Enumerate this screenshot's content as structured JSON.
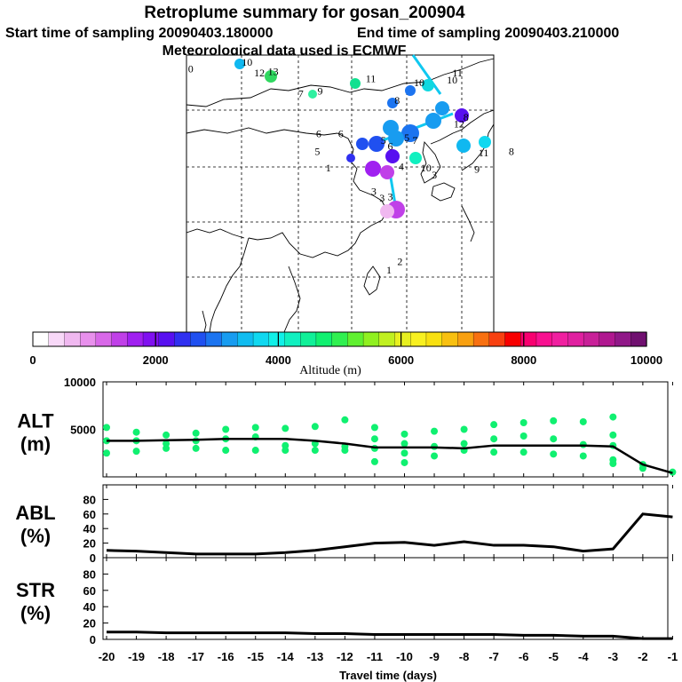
{
  "title": "Retroplume summary for gosan_200904",
  "start_label": "Start time of sampling 20090403.180000",
  "end_label": "End time of sampling 20090403.210000",
  "met_label": "Meteorological data used is ECMWF",
  "colorbar": {
    "title": "Altitude (m)",
    "ticks": [
      "0",
      "2000",
      "4000",
      "6000",
      "8000",
      "10000"
    ],
    "colors": [
      "#ffffff",
      "#f8d8f8",
      "#f0b8f0",
      "#e890ec",
      "#d868e8",
      "#c040e8",
      "#a020f0",
      "#8010f0",
      "#5810f0",
      "#3030f0",
      "#2050f0",
      "#1c74f0",
      "#189cf0",
      "#10bcf0",
      "#10d8f0",
      "#10f0e8",
      "#10f0c0",
      "#10f098",
      "#10f070",
      "#30f050",
      "#60f030",
      "#90f020",
      "#c0f020",
      "#e8f020",
      "#f8f020",
      "#f8e010",
      "#f8c010",
      "#f8a010",
      "#f87010",
      "#f84010",
      "#f80000",
      "#f80070",
      "#f81090",
      "#f020a0",
      "#e020a0",
      "#c82098",
      "#b01890",
      "#901888",
      "#701070"
    ]
  },
  "map": {
    "trajectory_labels": [
      {
        "text": "10",
        "color": "#10b8f0",
        "lon": 0.44,
        "lat": 0.05
      },
      {
        "text": "0",
        "color": "#3030f0",
        "lon": 0.05,
        "lat": 0.1
      },
      {
        "text": "12",
        "color": "#f8f020",
        "lon": 0.53,
        "lat": 0.13
      },
      {
        "text": "13",
        "color": "#30d860",
        "lon": 0.63,
        "lat": 0.12
      },
      {
        "text": "7",
        "color": "#30f0a0",
        "lon": 0.85,
        "lat": 0.28
      },
      {
        "text": "9",
        "color": "#30f0a0",
        "lon": 0.99,
        "lat": 0.26
      },
      {
        "text": "11",
        "color": "#10e090",
        "lon": 1.34,
        "lat": 0.17
      },
      {
        "text": "10",
        "color": "#1c74f0",
        "lon": 1.69,
        "lat": 0.2
      },
      {
        "text": "10",
        "color": "#10d8e0",
        "lon": 1.93,
        "lat": 0.18
      },
      {
        "text": "11",
        "color": "#10b8f0",
        "lon": 1.97,
        "lat": 0.13
      },
      {
        "text": "6",
        "color": "#90f020",
        "lon": 0.98,
        "lat": 0.57
      },
      {
        "text": "6",
        "color": "#1c74f0",
        "lon": 1.14,
        "lat": 0.57
      },
      {
        "text": "5",
        "color": "#e8f020",
        "lon": 0.97,
        "lat": 0.7
      },
      {
        "text": "8",
        "color": "#1c74f0",
        "lon": 1.55,
        "lat": 0.33
      },
      {
        "text": "12",
        "color": "#189cf0",
        "lon": 1.98,
        "lat": 0.5
      },
      {
        "text": "8",
        "color": "#189cf0",
        "lon": 2.05,
        "lat": 0.45
      },
      {
        "text": "7",
        "color": "#1c74f0",
        "lon": 1.68,
        "lat": 0.62
      },
      {
        "text": "5",
        "color": "#2050f0",
        "lon": 1.45,
        "lat": 0.62
      },
      {
        "text": "6",
        "color": "#189cf0",
        "lon": 1.5,
        "lat": 0.66
      },
      {
        "text": "5",
        "color": "#2050f0",
        "lon": 1.62,
        "lat": 0.6
      },
      {
        "text": "11",
        "color": "#10b8f0",
        "lon": 2.16,
        "lat": 0.71
      },
      {
        "text": "8",
        "color": "#10d8f0",
        "lon": 2.38,
        "lat": 0.7
      },
      {
        "text": "9",
        "color": "#10f0c0",
        "lon": 2.13,
        "lat": 0.83
      },
      {
        "text": "10",
        "color": "#10f0a0",
        "lon": 1.74,
        "lat": 0.82
      },
      {
        "text": "3",
        "color": "#f8f020",
        "lon": 1.82,
        "lat": 0.87
      },
      {
        "text": "4",
        "color": "#5810f0",
        "lon": 1.58,
        "lat": 0.81
      },
      {
        "text": "1",
        "color": "#3030f0",
        "lon": 1.05,
        "lat": 0.82
      },
      {
        "text": "3",
        "color": "#c040e8",
        "lon": 1.38,
        "lat": 0.99
      },
      {
        "text": "3",
        "color": "#a020f0",
        "lon": 1.44,
        "lat": 1.04
      },
      {
        "text": "3",
        "color": "#10d8c0",
        "lon": 1.5,
        "lat": 1.03
      },
      {
        "text": "2",
        "color": "#c040e8",
        "lon": 1.57,
        "lat": 1.5
      },
      {
        "text": "1",
        "color": "#f0b8f0",
        "lon": 1.49,
        "lat": 1.56
      }
    ]
  },
  "chart_data": [
    {
      "type": "scatter",
      "name": "ALT",
      "ylabel": "ALT (m)",
      "ylabel_line1": "ALT",
      "ylabel_line2": "(m)",
      "ylim": [
        0,
        10000
      ],
      "yticks": [
        "5000",
        "10000"
      ],
      "x": [
        -20,
        -19,
        -18,
        -17,
        -16,
        -15,
        -14,
        -13,
        -12,
        -11,
        -10,
        -9,
        -8,
        -7,
        -6,
        -5,
        -4,
        -3,
        -2,
        -1
      ],
      "median": [
        3800,
        3800,
        3850,
        3900,
        4000,
        4000,
        4000,
        3800,
        3500,
        3100,
        3100,
        3100,
        3000,
        3300,
        3300,
        3300,
        3300,
        3200,
        1300,
        400
      ],
      "points": [
        [
          -20,
          5200
        ],
        [
          -20,
          3800
        ],
        [
          -20,
          2500
        ],
        [
          -19,
          4700
        ],
        [
          -19,
          3800
        ],
        [
          -19,
          2700
        ],
        [
          -18,
          4400
        ],
        [
          -18,
          3500
        ],
        [
          -18,
          3000
        ],
        [
          -17,
          4600
        ],
        [
          -17,
          3800
        ],
        [
          -17,
          3000
        ],
        [
          -16,
          5000
        ],
        [
          -16,
          4000
        ],
        [
          -16,
          2800
        ],
        [
          -15,
          5200
        ],
        [
          -15,
          4200
        ],
        [
          -15,
          2800
        ],
        [
          -14,
          5100
        ],
        [
          -14,
          3300
        ],
        [
          -14,
          2800
        ],
        [
          -13,
          5300
        ],
        [
          -13,
          3500
        ],
        [
          -13,
          2800
        ],
        [
          -12,
          6000
        ],
        [
          -12,
          3200
        ],
        [
          -12,
          2800
        ],
        [
          -11,
          5200
        ],
        [
          -11,
          4000
        ],
        [
          -11,
          3000
        ],
        [
          -11,
          1600
        ],
        [
          -10,
          4500
        ],
        [
          -10,
          3500
        ],
        [
          -10,
          2500
        ],
        [
          -10,
          1500
        ],
        [
          -9,
          4800
        ],
        [
          -9,
          3200
        ],
        [
          -9,
          2200
        ],
        [
          -8,
          5000
        ],
        [
          -8,
          3500
        ],
        [
          -8,
          2800
        ],
        [
          -7,
          5500
        ],
        [
          -7,
          4000
        ],
        [
          -7,
          2600
        ],
        [
          -6,
          5700
        ],
        [
          -6,
          4300
        ],
        [
          -6,
          2600
        ],
        [
          -5,
          5900
        ],
        [
          -5,
          4000
        ],
        [
          -5,
          2400
        ],
        [
          -4,
          5800
        ],
        [
          -4,
          3400
        ],
        [
          -4,
          2200
        ],
        [
          -3,
          6300
        ],
        [
          -3,
          4400
        ],
        [
          -3,
          3300
        ],
        [
          -3,
          1800
        ],
        [
          -3,
          1400
        ],
        [
          -2,
          1300
        ],
        [
          -2,
          900
        ],
        [
          -1,
          500
        ]
      ],
      "point_color": "#10f070"
    },
    {
      "type": "line",
      "name": "ABL",
      "ylabel": "ABL (%)",
      "ylabel_line1": "ABL",
      "ylabel_line2": "(%)",
      "ylim": [
        0,
        100
      ],
      "yticks": [
        "0",
        "20",
        "40",
        "60",
        "80"
      ],
      "x": [
        -20,
        -19,
        -18,
        -17,
        -16,
        -15,
        -14,
        -13,
        -12,
        -11,
        -10,
        -9,
        -8,
        -7,
        -6,
        -5,
        -4,
        -3,
        -2,
        -1
      ],
      "values": [
        10,
        9,
        7,
        5,
        5,
        5,
        7,
        10,
        15,
        20,
        21,
        17,
        22,
        17,
        17,
        15,
        9,
        12,
        60,
        56
      ]
    },
    {
      "type": "line",
      "name": "STR",
      "ylabel": "STR (%)",
      "ylabel_line1": "STR",
      "ylabel_line2": "(%)",
      "ylim": [
        0,
        100
      ],
      "yticks": [
        "0",
        "20",
        "40",
        "60",
        "80"
      ],
      "x": [
        -20,
        -19,
        -18,
        -17,
        -16,
        -15,
        -14,
        -13,
        -12,
        -11,
        -10,
        -9,
        -8,
        -7,
        -6,
        -5,
        -4,
        -3,
        -2,
        -1
      ],
      "values": [
        9,
        9,
        8,
        8,
        8,
        8,
        8,
        7,
        7,
        6,
        6,
        6,
        6,
        6,
        5,
        5,
        4,
        4,
        1,
        1
      ]
    }
  ],
  "x_axis": {
    "xlabel": "Travel time (days)",
    "ticks": [
      "-20",
      "-19",
      "-18",
      "-17",
      "-16",
      "-15",
      "-14",
      "-13",
      "-12",
      "-11",
      "-10",
      "-9",
      "-8",
      "-7",
      "-6",
      "-5",
      "-4",
      "-3",
      "-2",
      "-1"
    ]
  }
}
